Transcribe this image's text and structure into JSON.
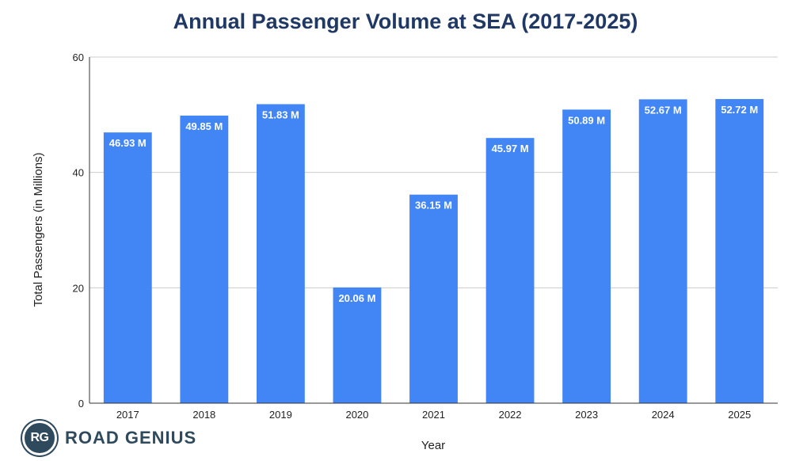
{
  "chart_data": {
    "type": "bar",
    "title": "Annual Passenger Volume at SEA (2017-2025)",
    "xlabel": "Year",
    "ylabel": "Total Passengers (in Millions)",
    "categories": [
      "2017",
      "2018",
      "2019",
      "2020",
      "2021",
      "2022",
      "2023",
      "2024",
      "2025"
    ],
    "values": [
      46.93,
      49.85,
      51.83,
      20.06,
      36.15,
      45.97,
      50.89,
      52.67,
      52.72
    ],
    "data_labels": [
      "46.93 M",
      "49.85 M",
      "51.83 M",
      "20.06 M",
      "36.15 M",
      "45.97 M",
      "50.89 M",
      "52.67 M",
      "52.72 M"
    ],
    "ylim": [
      0,
      60
    ],
    "yticks": [
      0,
      20,
      40,
      60
    ],
    "grid": true,
    "bar_color": "#4285f4",
    "title_color": "#1f3864"
  },
  "logo": {
    "badge": "RG",
    "text": "ROAD GENIUS"
  }
}
